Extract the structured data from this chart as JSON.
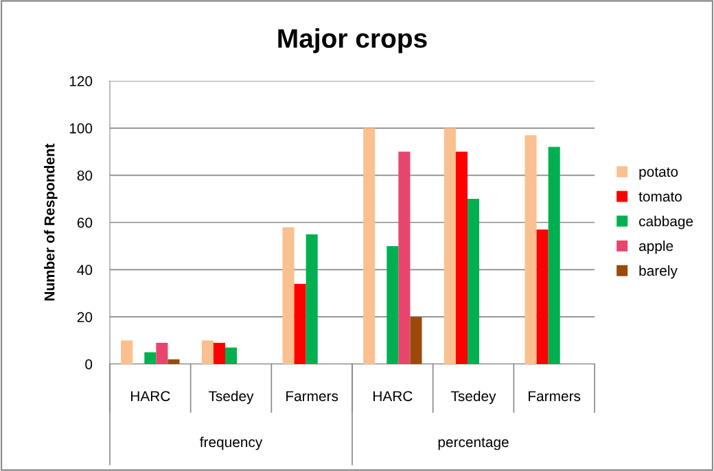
{
  "chart_data": {
    "type": "bar",
    "title": "Major crops",
    "ylabel": "Number of Respondent",
    "categories": [
      "HARC",
      "Tsedey",
      "Farmers",
      "HARC",
      "Tsedey",
      "Farmers"
    ],
    "series": [
      {
        "name": "potato",
        "color": "#fac090",
        "values": [
          10,
          10,
          58,
          100,
          100,
          97
        ]
      },
      {
        "name": "tomato",
        "color": "#ff0000",
        "values": [
          null,
          9,
          34,
          null,
          90,
          57
        ]
      },
      {
        "name": "cabbage",
        "color": "#00b050",
        "values": [
          5,
          7,
          55,
          50,
          70,
          92
        ]
      },
      {
        "name": "apple",
        "color": "#e8456e",
        "values": [
          9,
          null,
          null,
          90,
          null,
          null
        ]
      },
      {
        "name": "barely",
        "color": "#9c4a0a",
        "values": [
          2,
          null,
          null,
          20,
          null,
          null
        ]
      }
    ],
    "annotations": [
      "frequency",
      "percentage"
    ],
    "ylim": [
      0,
      120
    ],
    "yticks": [
      0,
      20,
      40,
      60,
      80,
      100,
      120
    ],
    "grid": "y",
    "legend": "right"
  }
}
